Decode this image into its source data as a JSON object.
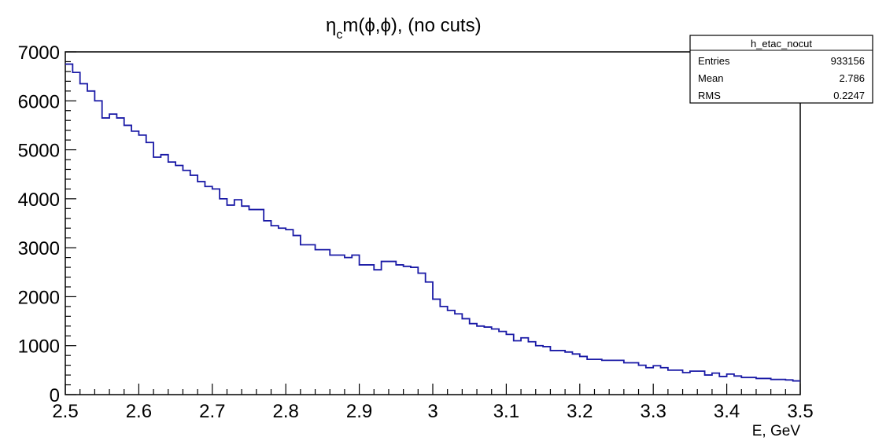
{
  "chart_data": {
    "type": "histogram",
    "title": {
      "main": "η",
      "sub": "c",
      "rest": "m(ϕ,ϕ), (no cuts)"
    },
    "xlabel": "E, GeV",
    "ylabel": "",
    "xlim": [
      2.5,
      3.5
    ],
    "ylim": [
      0,
      7000
    ],
    "x_ticks": [
      "2.5",
      "2.6",
      "2.7",
      "2.8",
      "2.9",
      "3",
      "3.1",
      "3.2",
      "3.3",
      "3.4",
      "3.5"
    ],
    "y_ticks": [
      "0",
      "1000",
      "2000",
      "3000",
      "4000",
      "5000",
      "6000",
      "7000"
    ],
    "grid": false,
    "line_color": "#1a1aa6",
    "bin_width": 0.01,
    "values": [
      6750,
      6580,
      6350,
      6200,
      6000,
      5650,
      5730,
      5650,
      5500,
      5380,
      5300,
      5150,
      4850,
      4900,
      4750,
      4680,
      4580,
      4480,
      4350,
      4250,
      4200,
      4000,
      3870,
      3980,
      3850,
      3780,
      3780,
      3550,
      3450,
      3400,
      3370,
      3250,
      3060,
      3060,
      2960,
      2960,
      2850,
      2850,
      2800,
      2850,
      2650,
      2650,
      2550,
      2720,
      2720,
      2650,
      2620,
      2600,
      2480,
      2300,
      1950,
      1800,
      1720,
      1650,
      1550,
      1450,
      1400,
      1380,
      1340,
      1290,
      1230,
      1100,
      1160,
      1080,
      1000,
      980,
      900,
      900,
      870,
      830,
      780,
      720,
      720,
      700,
      700,
      700,
      650,
      650,
      600,
      550,
      590,
      550,
      500,
      500,
      450,
      480,
      480,
      400,
      440,
      370,
      420,
      380,
      350,
      350,
      330,
      330,
      310,
      310,
      300,
      280
    ],
    "stats_box": {
      "name": "h_etac_nocut",
      "rows": [
        {
          "label": "Entries",
          "value": "933156"
        },
        {
          "label": "Mean",
          "value": "2.786"
        },
        {
          "label": "RMS",
          "value": "0.2247"
        }
      ]
    }
  }
}
